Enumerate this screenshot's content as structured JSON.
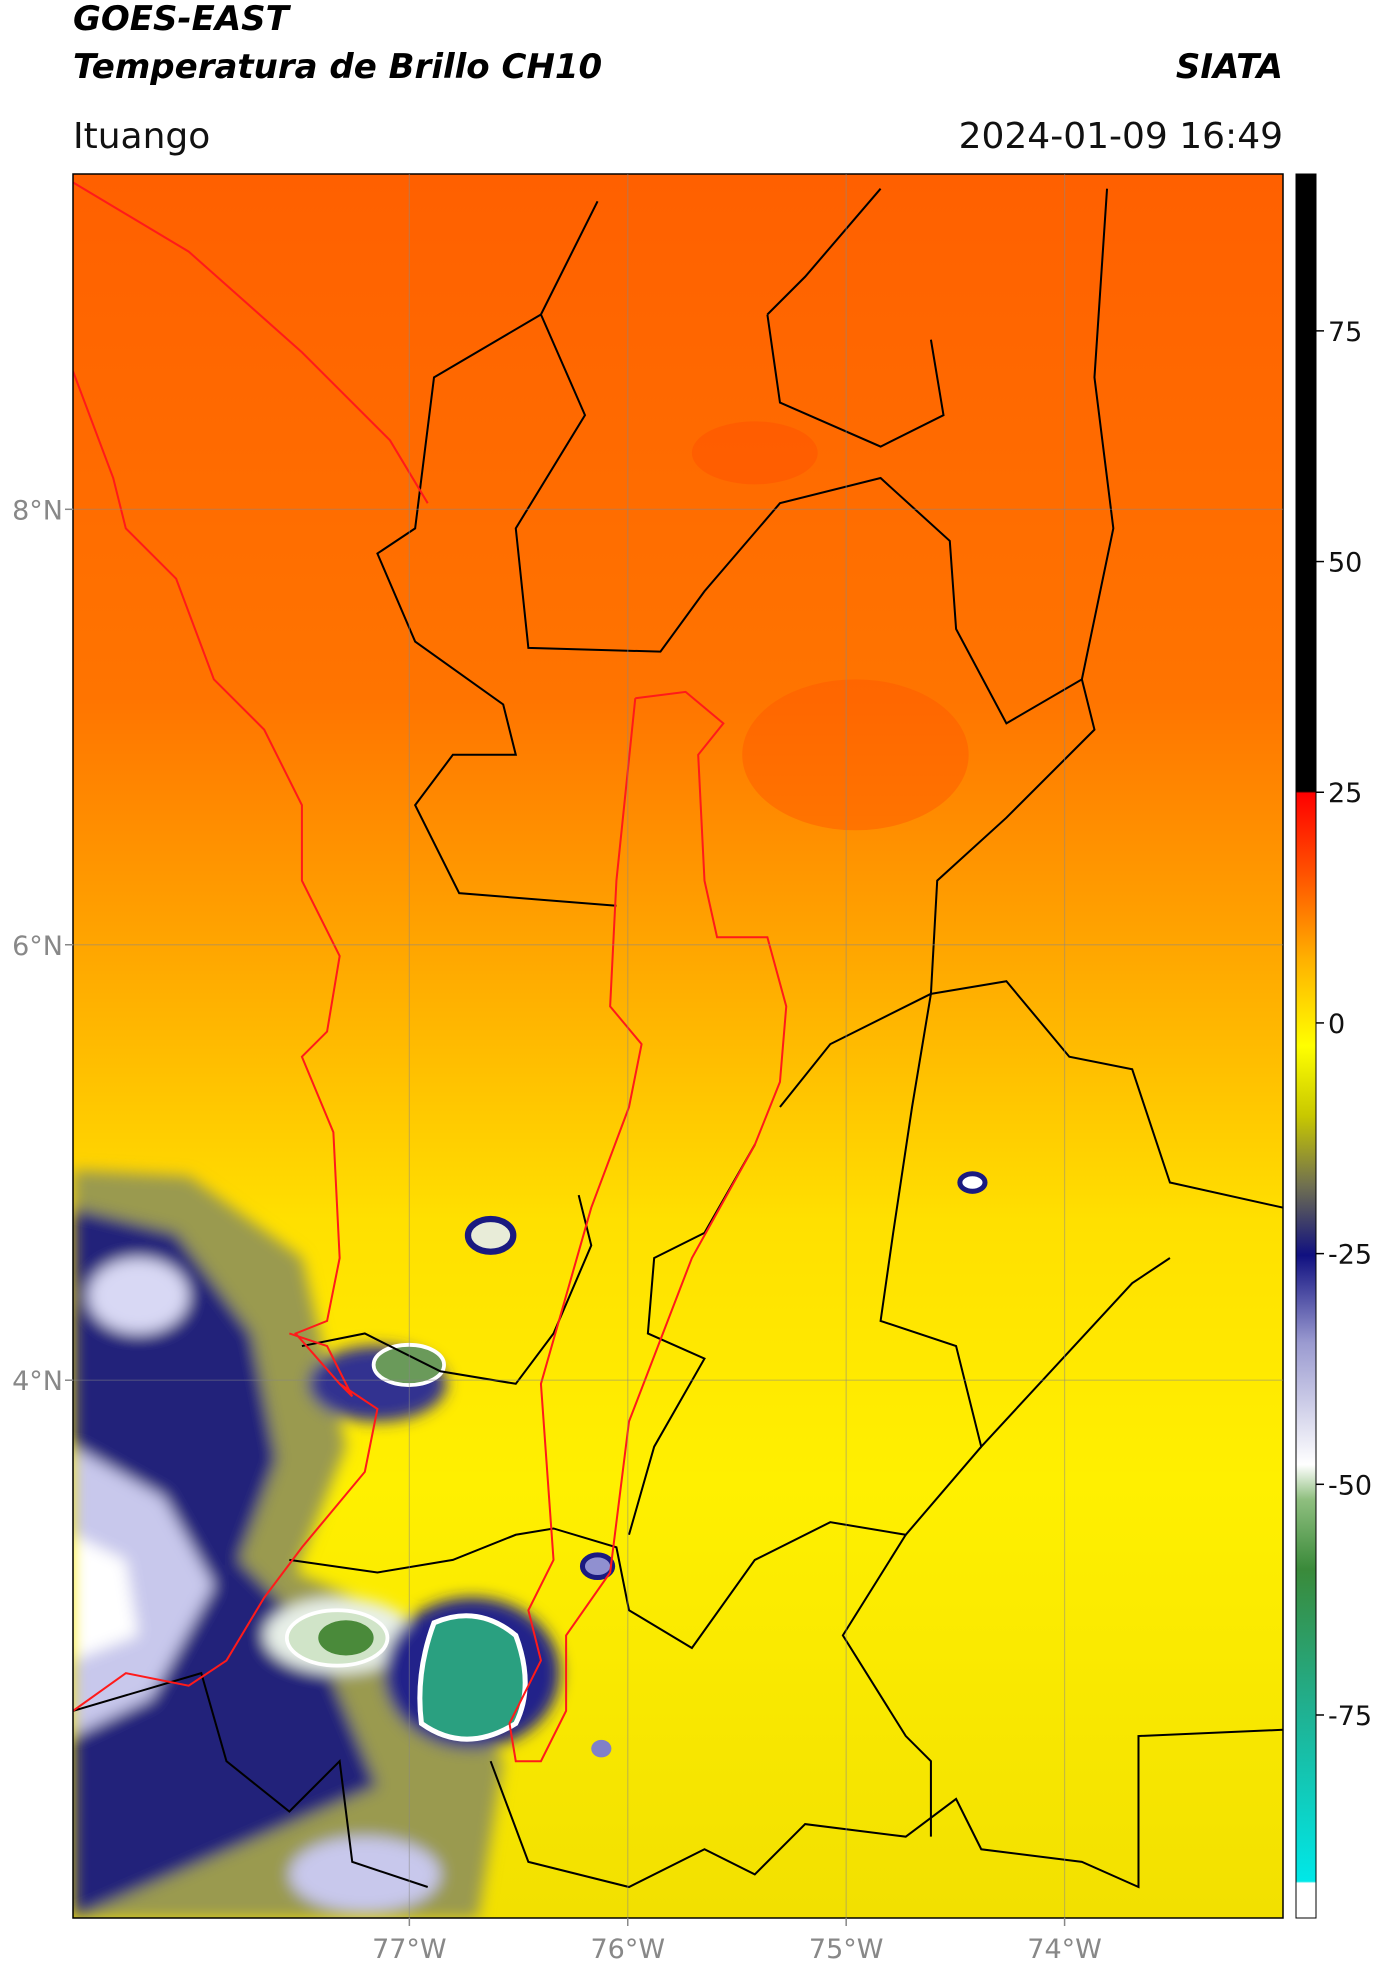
{
  "chart_data": {
    "type": "map",
    "title": "GOES-EAST",
    "subtitle": "Temperatura de Brillo CH10",
    "source": "SIATA",
    "location": "Ituango",
    "datetime": "2024-01-09 16:49",
    "xlim": [
      -78.54,
      -73.0
    ],
    "ylim": [
      1.53,
      9.54
    ],
    "xticks": [
      {
        "value": -77,
        "label": "77°W"
      },
      {
        "value": -76,
        "label": "76°W"
      },
      {
        "value": -75,
        "label": "75°W"
      },
      {
        "value": -74,
        "label": "74°W"
      }
    ],
    "yticks": [
      {
        "value": 8,
        "label": "8°N"
      },
      {
        "value": 6,
        "label": "6°N"
      },
      {
        "value": 4,
        "label": "4°N"
      }
    ],
    "grid": true,
    "colorbar": {
      "clim": [
        -97,
        92
      ],
      "ticks": [
        75,
        50,
        25,
        0,
        -25,
        -50,
        -75
      ]
    }
  }
}
